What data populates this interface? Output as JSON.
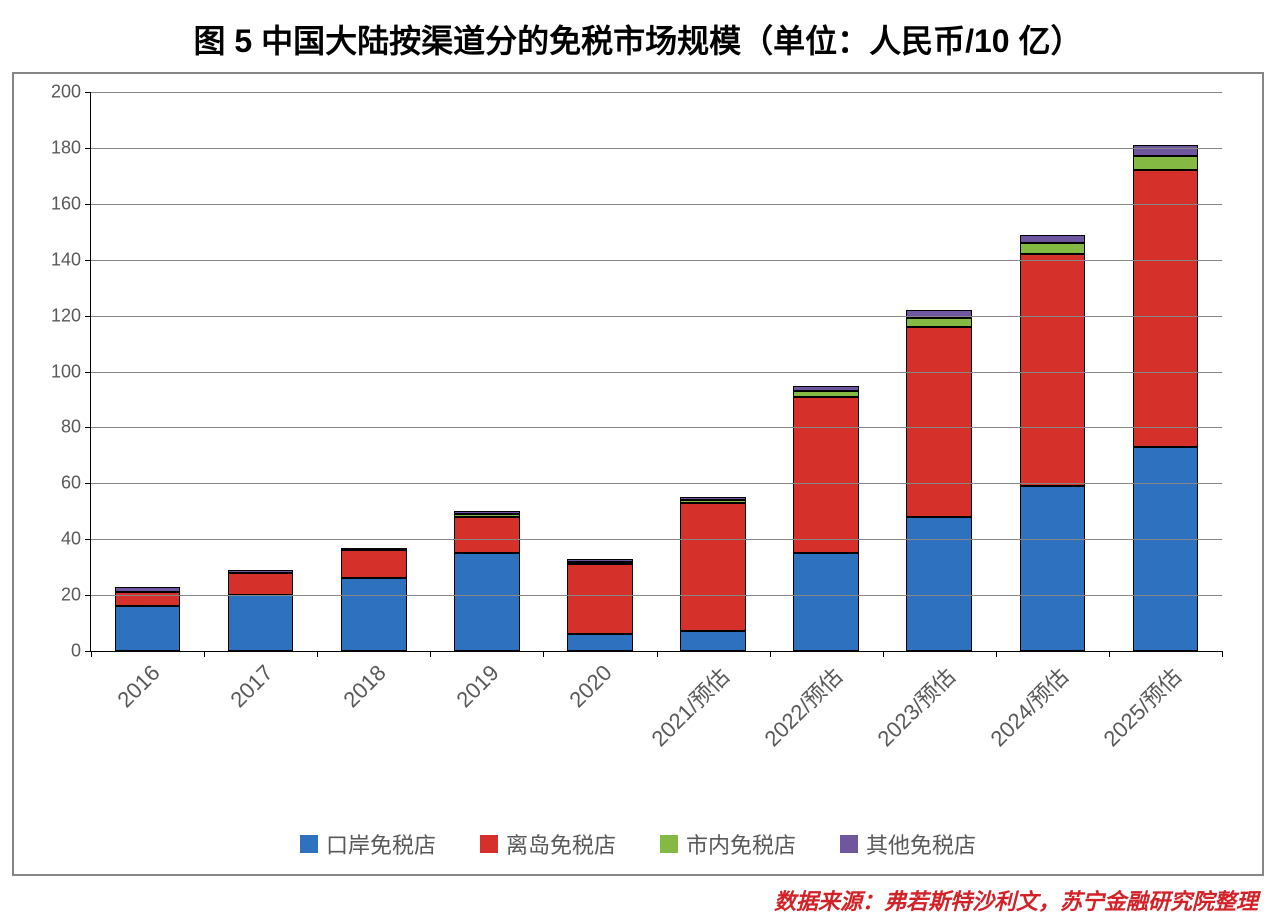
{
  "title": "图 5 中国大陆按渠道分的免税市场规模（单位：人民币/10 亿）",
  "title_fontsize": 32,
  "source_text": "数据来源：弗若斯特沙利文，苏宁金融研究院整理",
  "source_color": "#d22228",
  "source_fontsize": 22,
  "chart": {
    "type": "stacked-bar",
    "background_color": "#ffffff",
    "border_color": "#868686",
    "grid_color": "#878787",
    "axis_color": "#000000",
    "tick_label_color": "#595959",
    "tick_fontsize": 18,
    "x_label_fontsize": 22,
    "legend_fontsize": 22,
    "bar_border_color": "#000000",
    "bar_width_ratio": 0.58,
    "y": {
      "min": 0,
      "max": 200,
      "step": 20
    },
    "categories": [
      "2016",
      "2017",
      "2018",
      "2019",
      "2020",
      "2021/预估",
      "2022/预估",
      "2023/预估",
      "2024/预估",
      "2025/预估"
    ],
    "series": [
      {
        "key": "port",
        "label": "口岸免税店",
        "color": "#2e72bf",
        "values": [
          16,
          20,
          26,
          35,
          6,
          7,
          35,
          48,
          59,
          73
        ]
      },
      {
        "key": "island",
        "label": "离岛免税店",
        "color": "#d6302a",
        "values": [
          5,
          8,
          10,
          13,
          25,
          46,
          56,
          68,
          83,
          99
        ]
      },
      {
        "key": "city",
        "label": "市内免税店",
        "color": "#84b944",
        "values": [
          0,
          0,
          0,
          1,
          1,
          1,
          2,
          3,
          4,
          5
        ]
      },
      {
        "key": "other",
        "label": "其他免税店",
        "color": "#6e579e",
        "values": [
          2,
          1,
          1,
          1,
          1,
          1,
          2,
          3,
          3,
          4
        ]
      }
    ]
  }
}
